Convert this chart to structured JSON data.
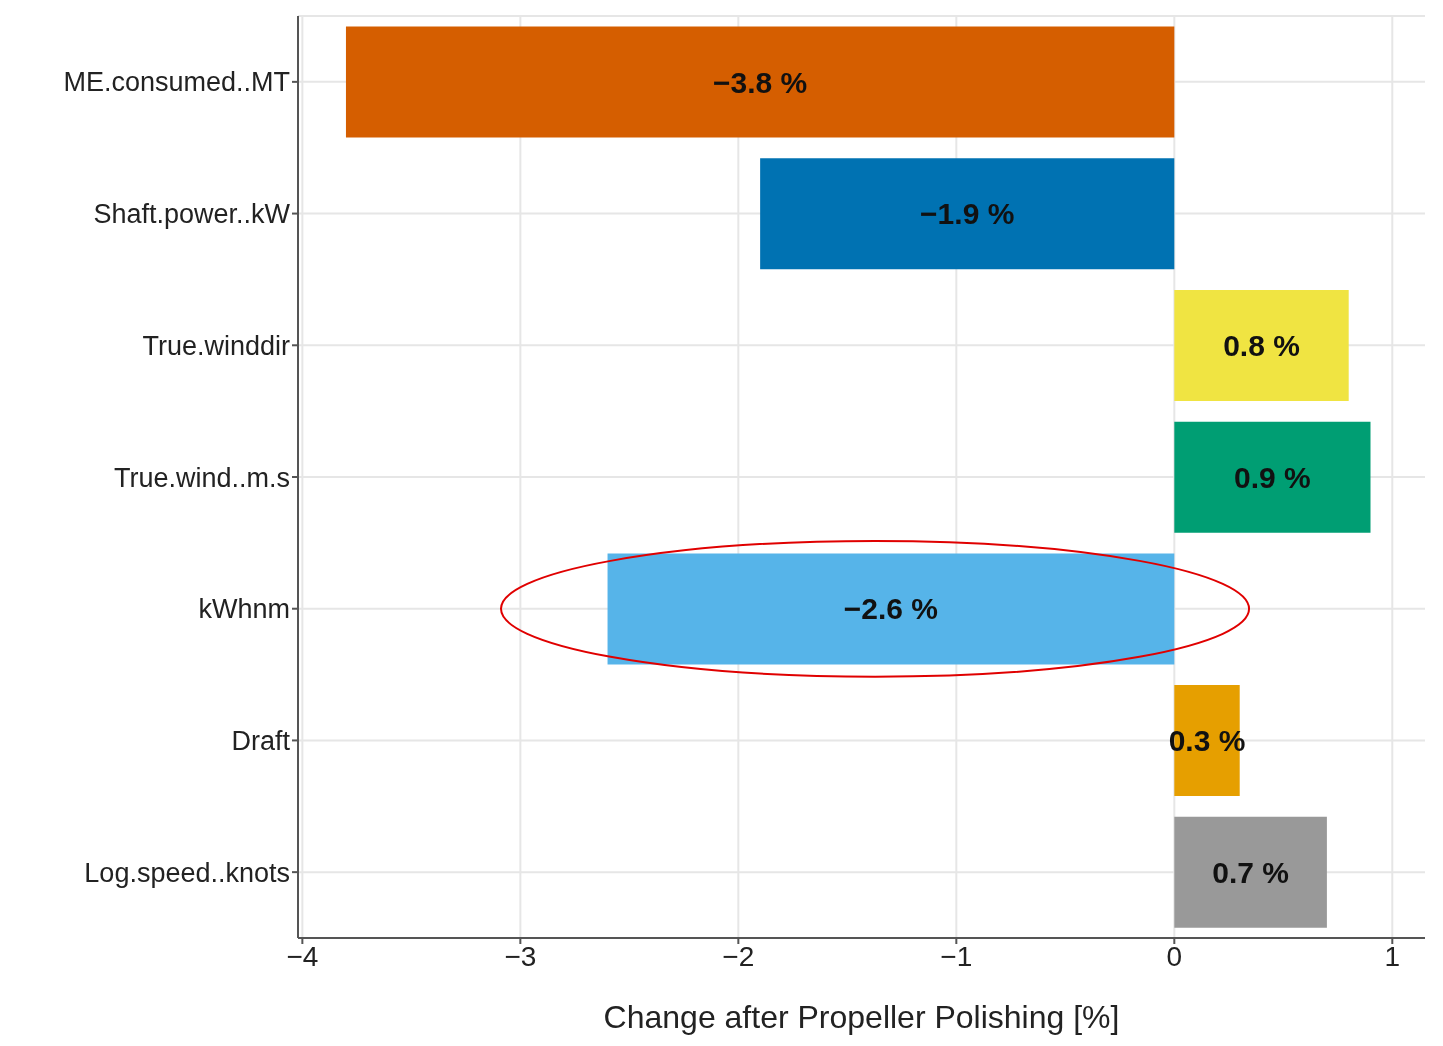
{
  "chart_data": {
    "type": "bar",
    "orientation": "horizontal",
    "xlabel": "Change after Propeller Polishing [%]",
    "categories": [
      "ME.consumed..MT",
      "Shaft.power..kW",
      "True.winddir",
      "True.wind..m.s",
      "kWhnm",
      "Draft",
      "Log.speed..knots"
    ],
    "values": [
      -3.8,
      -1.9,
      0.8,
      0.9,
      -2.6,
      0.3,
      0.7
    ],
    "value_labels": [
      "−3.8 %",
      "−1.9 %",
      "0.8 %",
      "0.9 %",
      "−2.6 %",
      "0.3 %",
      "0.7 %"
    ],
    "colors": [
      "#d55e00",
      "#0072b2",
      "#f0e442",
      "#009e73",
      "#56b4e9",
      "#e69f00",
      "#999999"
    ],
    "xlim": [
      -4.02,
      1.15
    ],
    "xticks": [
      {
        "value": -4,
        "label": "−4"
      },
      {
        "value": -3,
        "label": "−3"
      },
      {
        "value": -2,
        "label": "−2"
      },
      {
        "value": -1,
        "label": "−1"
      },
      0,
      1
    ],
    "grid": true
  }
}
